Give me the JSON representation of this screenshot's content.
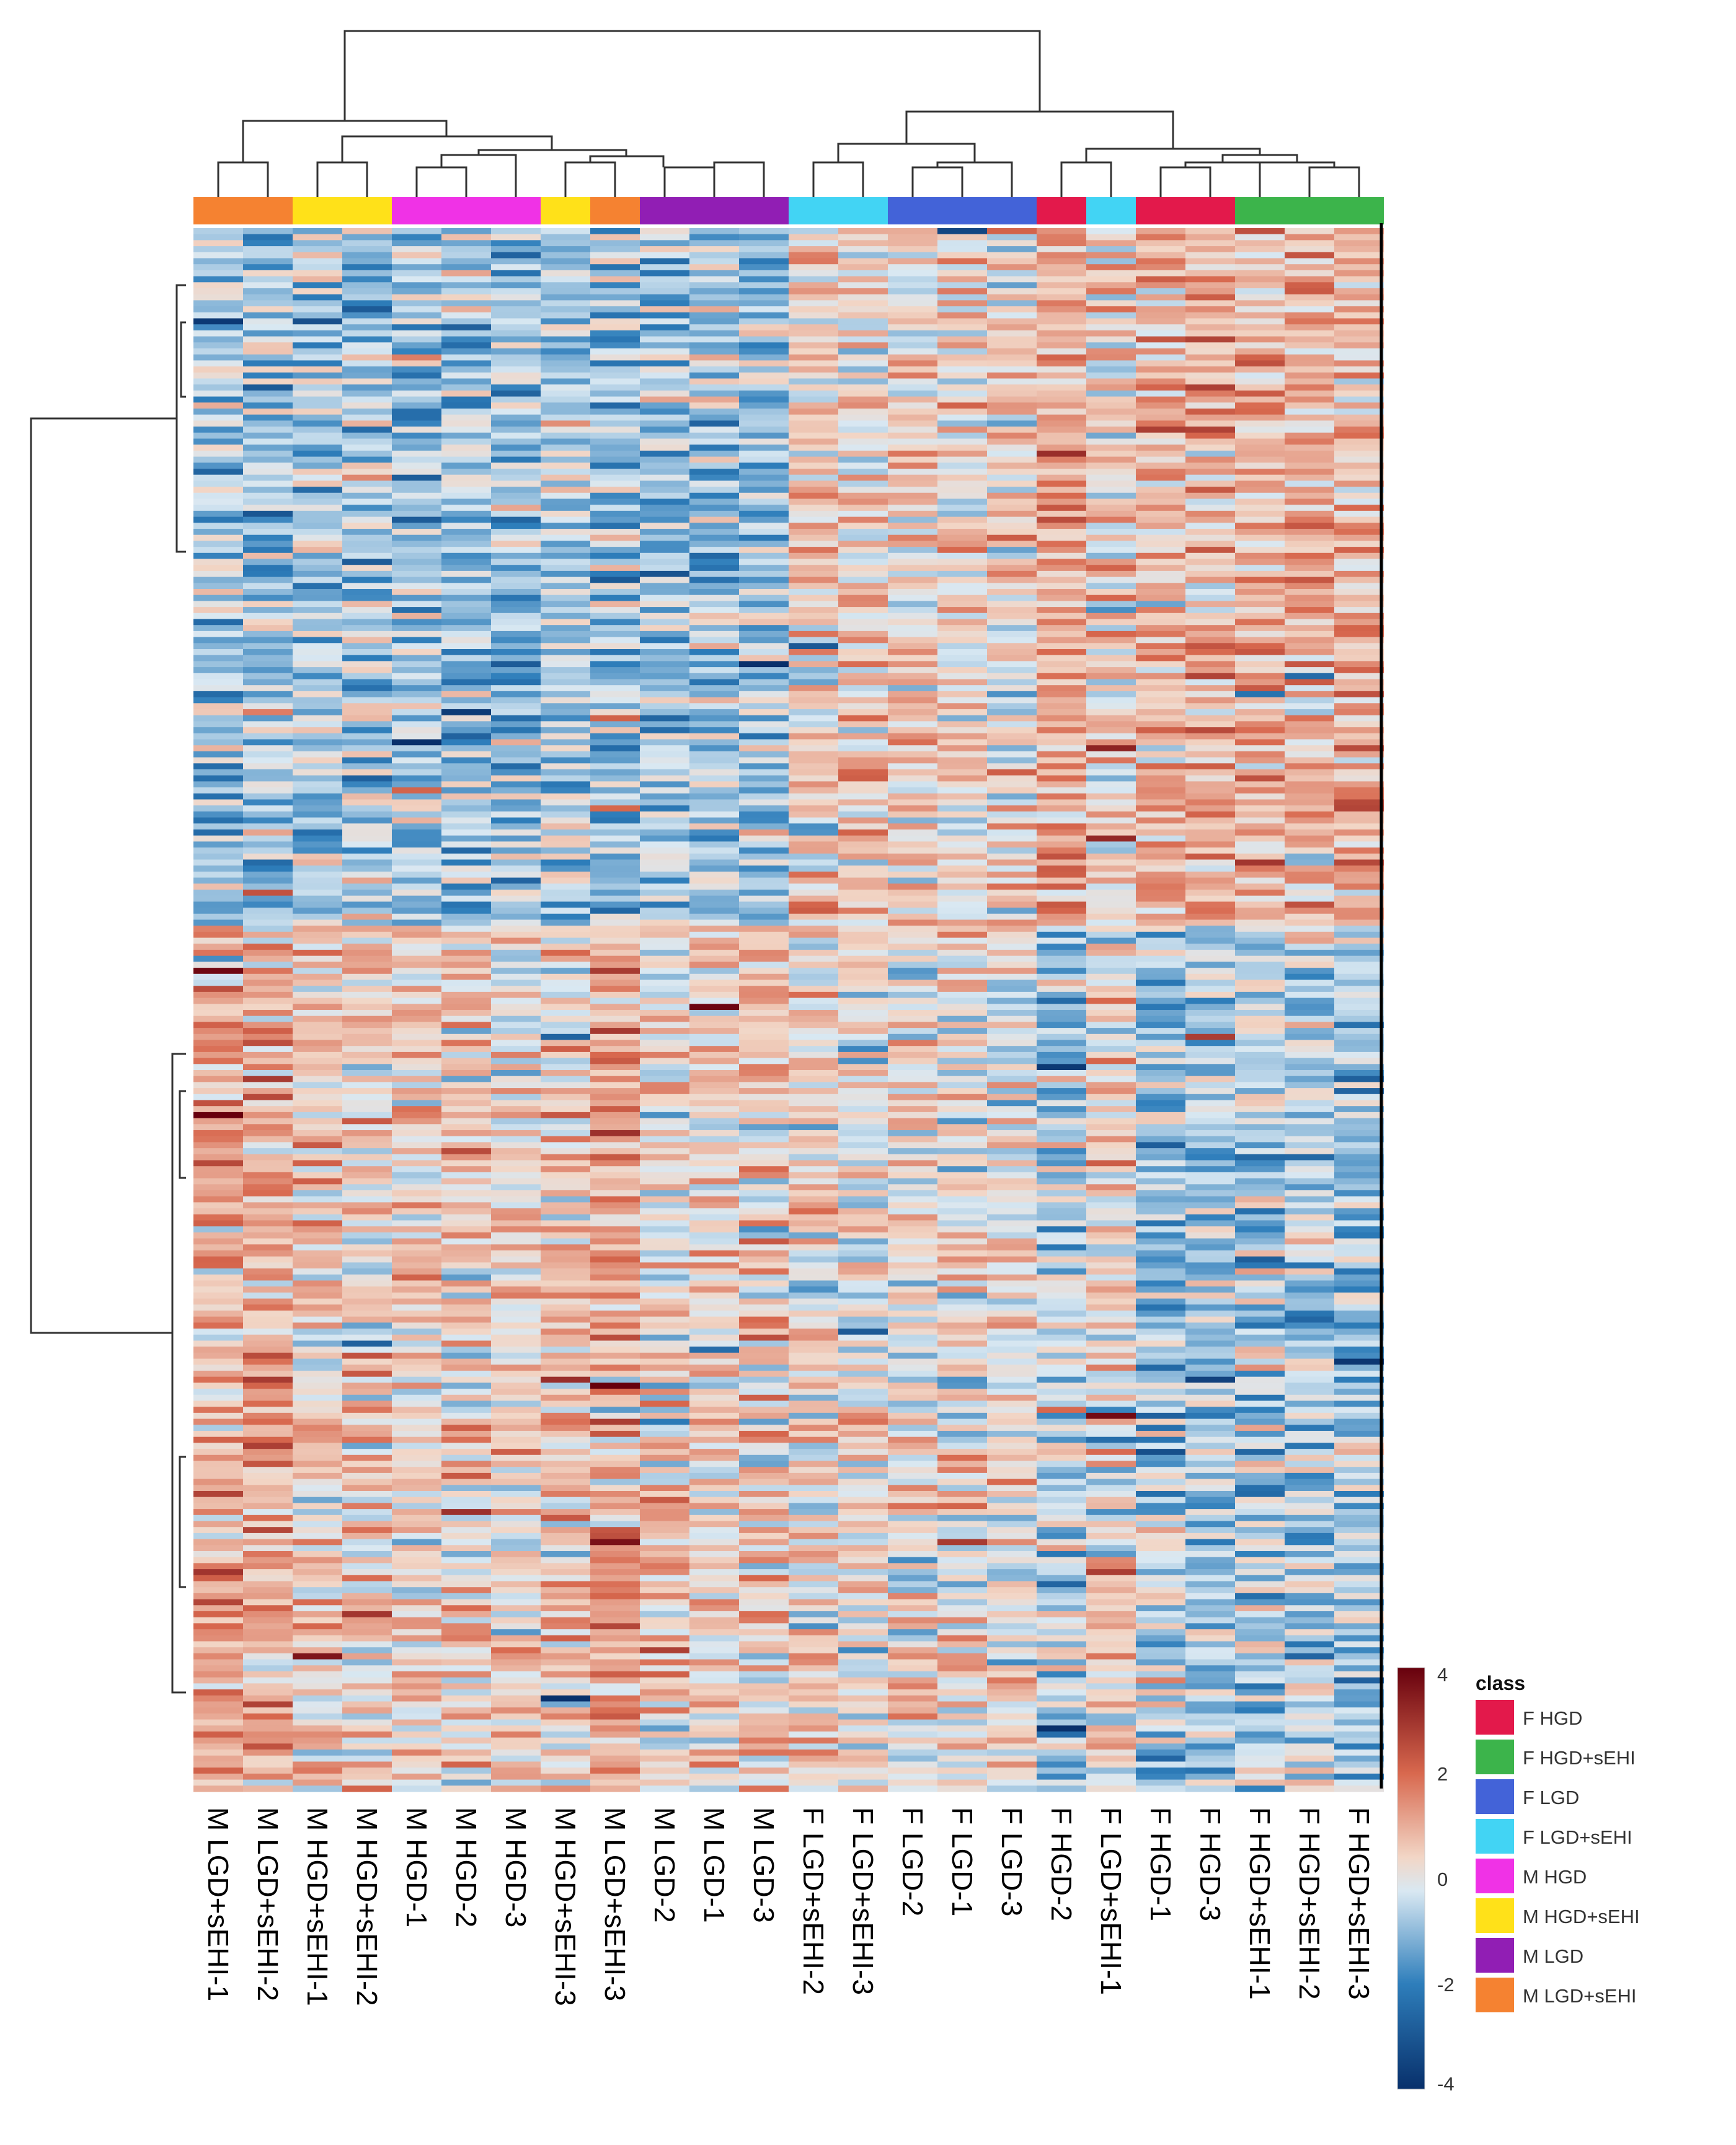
{
  "chart_data": {
    "type": "heatmap",
    "title": "",
    "columns": [
      {
        "label": "M LGD+sEHI-1",
        "class": "M LGD+sEHI"
      },
      {
        "label": "M LGD+sEHI-2",
        "class": "M LGD+sEHI"
      },
      {
        "label": "M HGD+sEHI-1",
        "class": "M HGD+sEHI"
      },
      {
        "label": "M HGD+sEHI-2",
        "class": "M HGD+sEHI"
      },
      {
        "label": "M HGD-1",
        "class": "M HGD"
      },
      {
        "label": "M HGD-2",
        "class": "M HGD"
      },
      {
        "label": "M HGD-3",
        "class": "M HGD"
      },
      {
        "label": "M HGD+sEHI-3",
        "class": "M HGD+sEHI"
      },
      {
        "label": "M LGD+sEHI-3",
        "class": "M LGD+sEHI"
      },
      {
        "label": "M LGD-2",
        "class": "M LGD"
      },
      {
        "label": "M LGD-1",
        "class": "M LGD"
      },
      {
        "label": "M LGD-3",
        "class": "M LGD"
      },
      {
        "label": "F LGD+sEHI-2",
        "class": "F LGD+sEHI"
      },
      {
        "label": "F LGD+sEHI-3",
        "class": "F LGD+sEHI"
      },
      {
        "label": "F LGD-2",
        "class": "F LGD"
      },
      {
        "label": "F LGD-1",
        "class": "F LGD"
      },
      {
        "label": "F LGD-3",
        "class": "F LGD"
      },
      {
        "label": "F HGD-2",
        "class": "F HGD"
      },
      {
        "label": "F LGD+sEHI-1",
        "class": "F LGD+sEHI"
      },
      {
        "label": "F HGD-1",
        "class": "F HGD"
      },
      {
        "label": "F HGD-3",
        "class": "F HGD"
      },
      {
        "label": "F HGD+sEHI-1",
        "class": "F HGD+sEHI"
      },
      {
        "label": "F HGD+sEHI-2",
        "class": "F HGD+sEHI"
      },
      {
        "label": "F HGD+sEHI-3",
        "class": "F HGD+sEHI"
      }
    ],
    "classes": [
      {
        "name": "F HGD",
        "color": "#E3194B"
      },
      {
        "name": "F HGD+sEHI",
        "color": "#3CB44B"
      },
      {
        "name": "F LGD",
        "color": "#4363D8"
      },
      {
        "name": "F LGD+sEHI",
        "color": "#42D4F4"
      },
      {
        "name": "M HGD",
        "color": "#F032E6"
      },
      {
        "name": "M HGD+sEHI",
        "color": "#FFE119"
      },
      {
        "name": "M LGD",
        "color": "#911EB4"
      },
      {
        "name": "M LGD+sEHI",
        "color": "#F58231"
      }
    ],
    "legend_title": "class",
    "color_scale": {
      "min": -4,
      "max": 4,
      "ticks": [
        "4",
        "2",
        "0",
        "-2",
        "-4"
      ],
      "stops": [
        "#08306B",
        "#2E7EBB",
        "#D9E8F2",
        "#F2D6C6",
        "#D8684E",
        "#67000D"
      ]
    },
    "row_block_pattern": "Upper rows: male groups low (blue), female groups high (orange); lower rows: male groups high, female HGD groups low",
    "value_range": [
      -4,
      4
    ]
  },
  "colors": {
    "background": "#FFFFFF",
    "neutral": "#E5E5E5"
  }
}
